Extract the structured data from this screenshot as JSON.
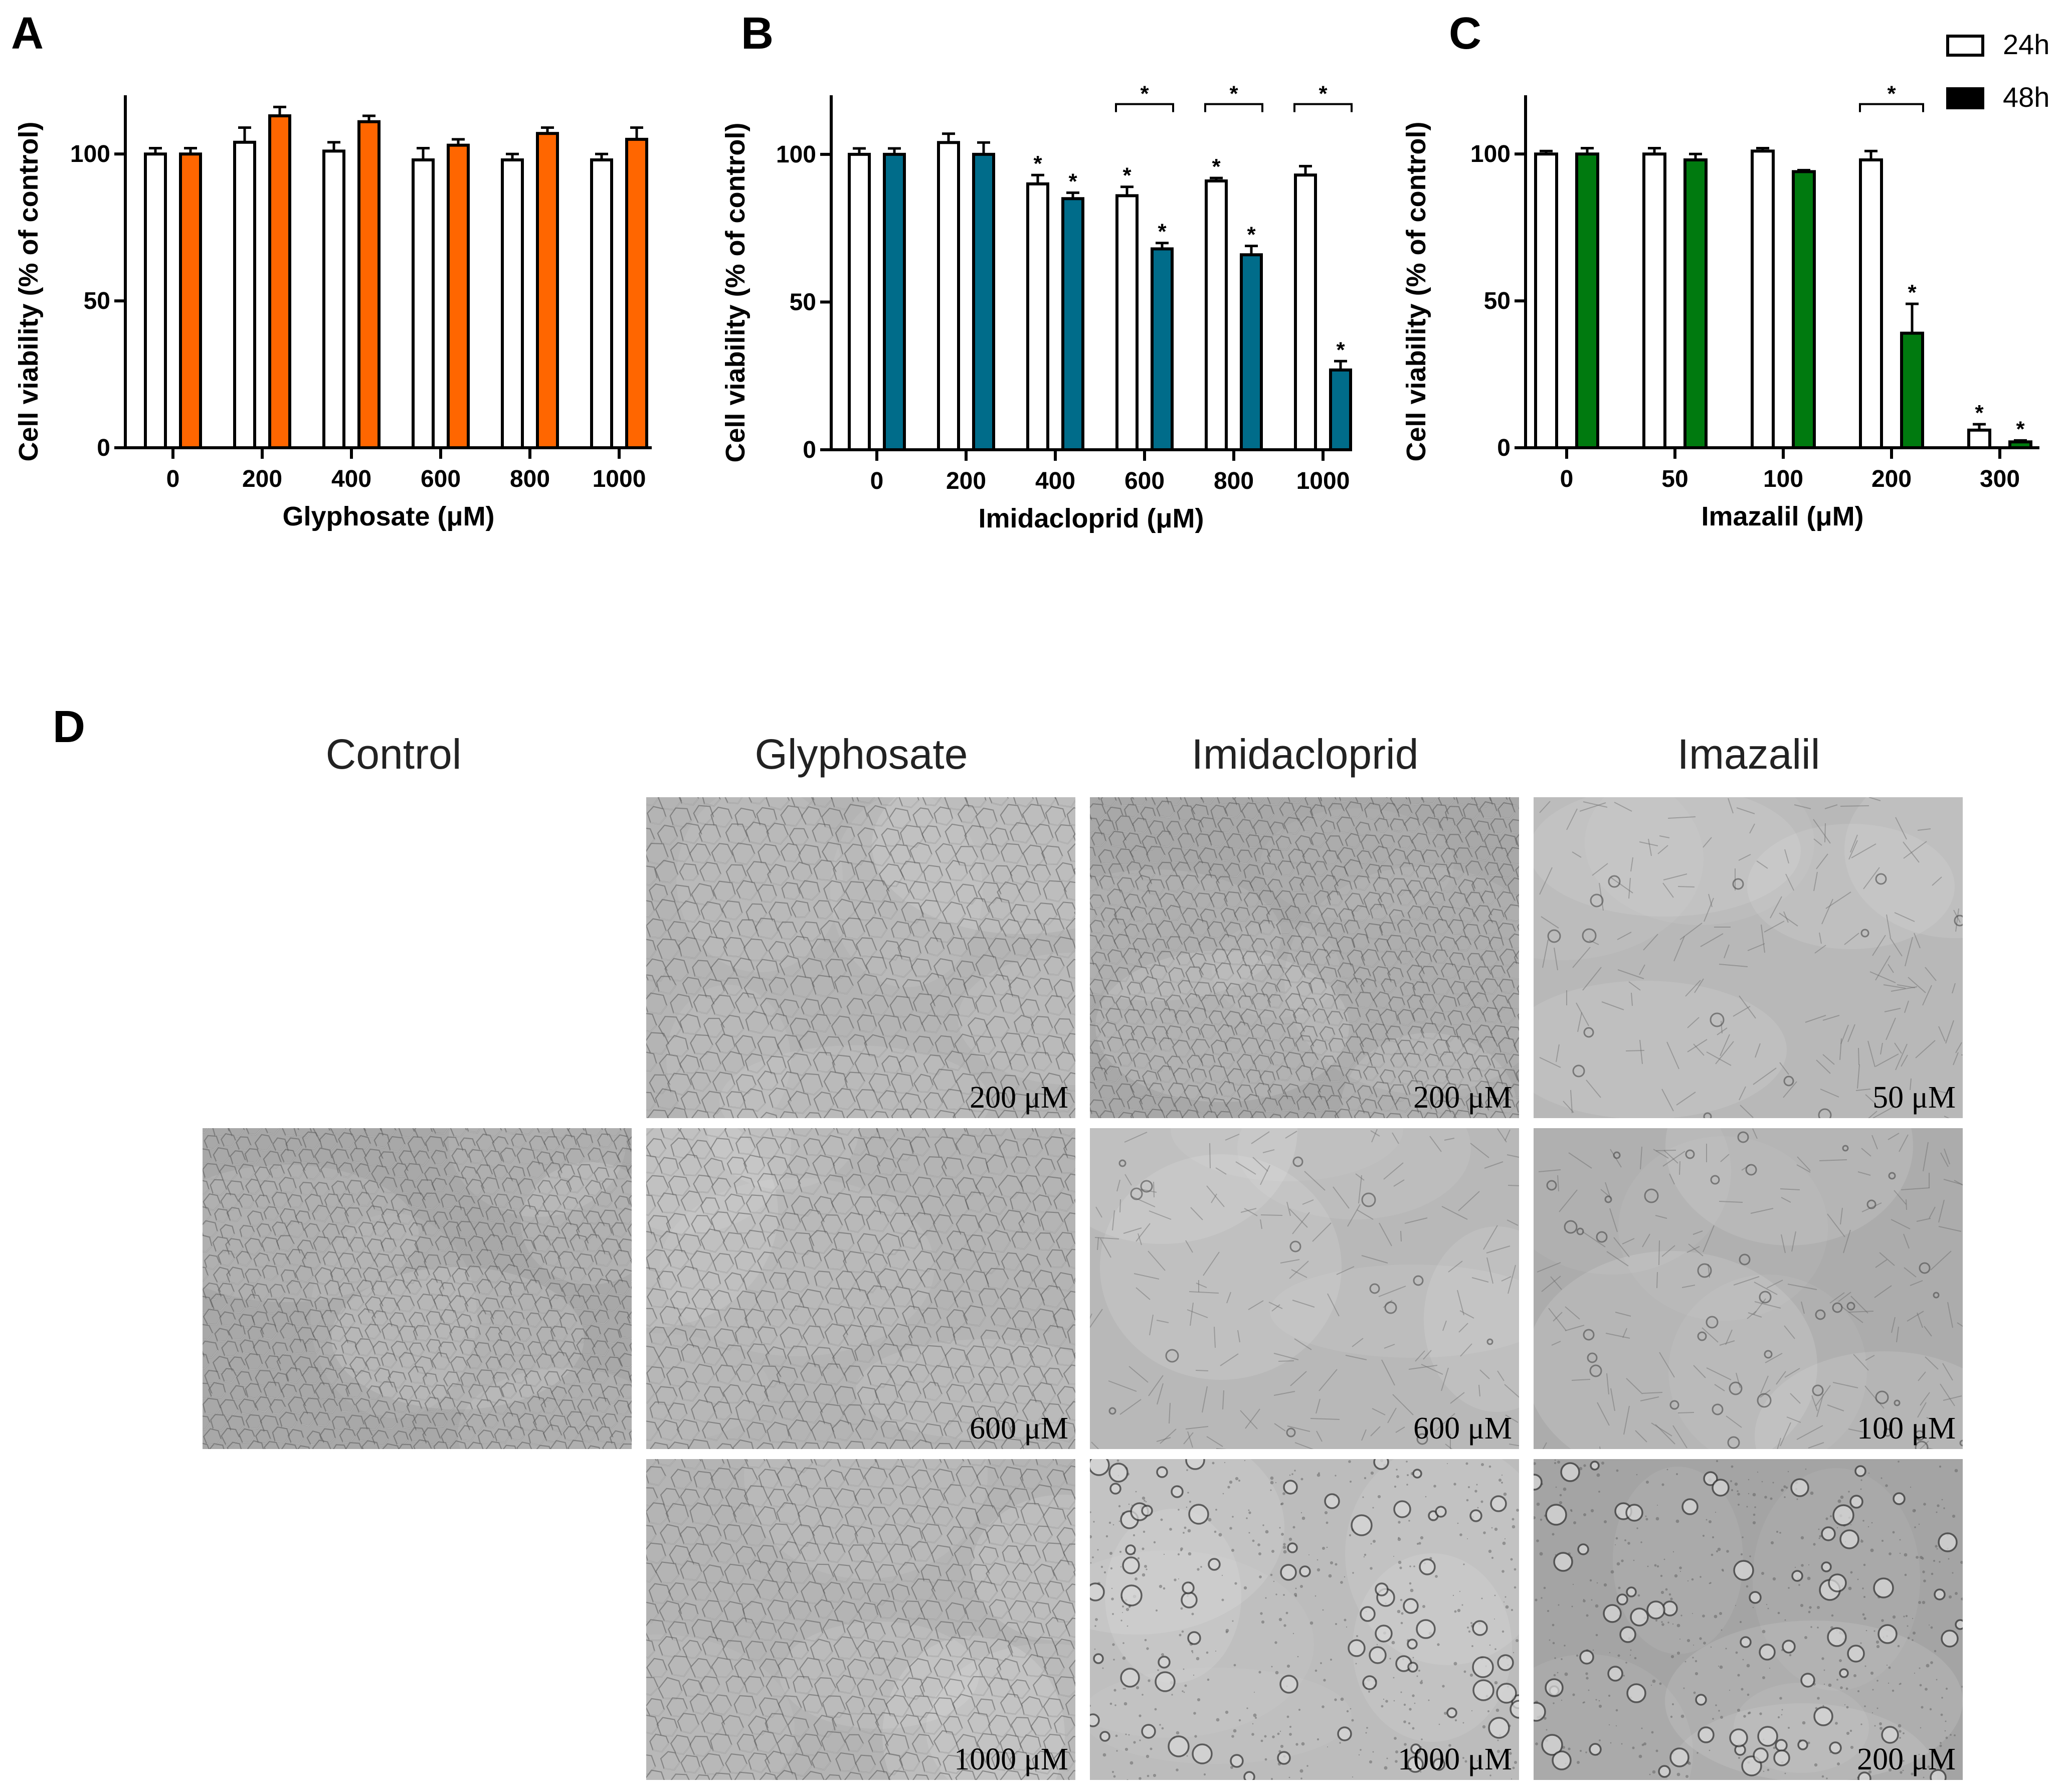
{
  "panels": {
    "a": {
      "letter": "A"
    },
    "b": {
      "letter": "B"
    },
    "c": {
      "letter": "C"
    },
    "d": {
      "letter": "D"
    }
  },
  "legend": [
    {
      "label": "24h",
      "fill": "#ffffff"
    },
    {
      "label": "48h",
      "fill": "#000000"
    }
  ],
  "chart_data": [
    {
      "type": "bar",
      "panel": "A",
      "xlabel": "Glyphosate (μM)",
      "ylabel": "Cell viability (% of control)",
      "ylim": [
        0,
        120
      ],
      "yticks": [
        0,
        50,
        100
      ],
      "categories": [
        "0",
        "200",
        "400",
        "600",
        "800",
        "1000"
      ],
      "color_48h": "#ff6600",
      "series": [
        {
          "name": "24h",
          "values": [
            100,
            104,
            101,
            98,
            98,
            98
          ],
          "errors": [
            2,
            5,
            3,
            4,
            2,
            2
          ],
          "sig": [
            false,
            false,
            false,
            false,
            false,
            false
          ]
        },
        {
          "name": "48h",
          "values": [
            100,
            113,
            111,
            103,
            107,
            105
          ],
          "errors": [
            2,
            3,
            2,
            2,
            2,
            4
          ],
          "sig": [
            false,
            false,
            false,
            false,
            false,
            false
          ]
        }
      ],
      "brackets": []
    },
    {
      "type": "bar",
      "panel": "B",
      "xlabel": "Imidacloprid (μM)",
      "ylabel": "Cell viability (% of control)",
      "ylim": [
        0,
        120
      ],
      "yticks": [
        0,
        50,
        100
      ],
      "categories": [
        "0",
        "200",
        "400",
        "600",
        "800",
        "1000"
      ],
      "color_48h": "#006c8a",
      "series": [
        {
          "name": "24h",
          "values": [
            100,
            104,
            90,
            86,
            91,
            93
          ],
          "errors": [
            2,
            3,
            3,
            3,
            1,
            3
          ],
          "sig": [
            false,
            false,
            true,
            true,
            true,
            false
          ]
        },
        {
          "name": "48h",
          "values": [
            100,
            100,
            85,
            68,
            66,
            27
          ],
          "errors": [
            2,
            4,
            2,
            2,
            3,
            3
          ],
          "sig": [
            false,
            false,
            true,
            true,
            true,
            true
          ]
        }
      ],
      "brackets": [
        3,
        4,
        5
      ]
    },
    {
      "type": "bar",
      "panel": "C",
      "xlabel": "Imazalil (μM)",
      "ylabel": "Cell viability (% of control)",
      "ylim": [
        0,
        120
      ],
      "yticks": [
        0,
        50,
        100
      ],
      "categories": [
        "0",
        "50",
        "100",
        "200",
        "300"
      ],
      "color_48h": "#007a0f",
      "series": [
        {
          "name": "24h",
          "values": [
            100,
            100,
            101,
            98,
            6
          ],
          "errors": [
            1,
            2,
            1,
            3,
            2
          ],
          "sig": [
            false,
            false,
            false,
            false,
            true
          ]
        },
        {
          "name": "48h",
          "values": [
            100,
            98,
            94,
            39,
            2
          ],
          "errors": [
            2,
            2,
            0.5,
            10,
            0.5
          ],
          "sig": [
            false,
            false,
            false,
            true,
            true
          ]
        }
      ],
      "brackets": [
        3
      ]
    }
  ],
  "sig_mark": "*",
  "microscopy": {
    "columns": [
      {
        "title": "Control"
      },
      {
        "title": "Glyphosate"
      },
      {
        "title": "Imidacloprid"
      },
      {
        "title": "Imazalil"
      }
    ],
    "images": [
      {
        "concentration": "200 μM"
      },
      {
        "concentration": "600 μM"
      },
      {
        "concentration": "1000 μM"
      },
      {
        "concentration": "200 μM"
      },
      {
        "concentration": "600 μM"
      },
      {
        "concentration": "1000 μM"
      },
      {
        "concentration": "50 μM"
      },
      {
        "concentration": "100 μM"
      },
      {
        "concentration": "200 μM"
      }
    ]
  }
}
